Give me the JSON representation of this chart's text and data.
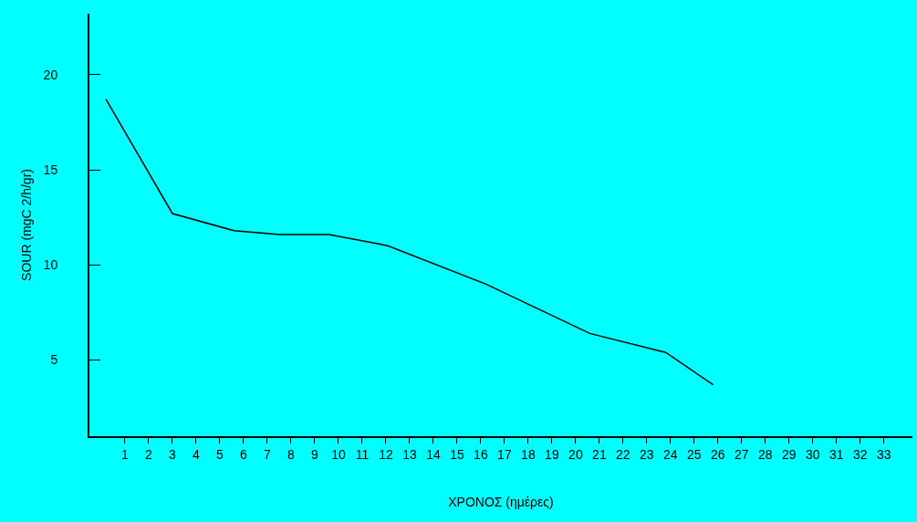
{
  "chart_data": {
    "type": "line",
    "xlabel": "ΧΡΟΝΟΣ (ημέρες)",
    "ylabel": "SOUR (mgC 2/h/gr)",
    "x": [
      0.2,
      3.0,
      5.6,
      7.5,
      9.6,
      11.7,
      12.1,
      16.2,
      20.6,
      23.8,
      25.8
    ],
    "series": [
      {
        "color": "#000000",
        "values": [
          18.7,
          12.7,
          11.8,
          11.6,
          11.6,
          11.1,
          11.0,
          9.0,
          6.4,
          5.4,
          3.7
        ]
      }
    ],
    "xlim": [
      -0.5,
      34.2
    ],
    "xticks": [
      1,
      2,
      3,
      4,
      5,
      6,
      7,
      8,
      9,
      10,
      11,
      12,
      13,
      14,
      15,
      16,
      17,
      18,
      19,
      20,
      21,
      22,
      23,
      24,
      25,
      26,
      27,
      28,
      29,
      30,
      31,
      32,
      33
    ],
    "ylim": [
      1,
      23.2
    ],
    "yticks": [
      5,
      10,
      15,
      20
    ],
    "marker": "none",
    "line_style": "solid"
  }
}
